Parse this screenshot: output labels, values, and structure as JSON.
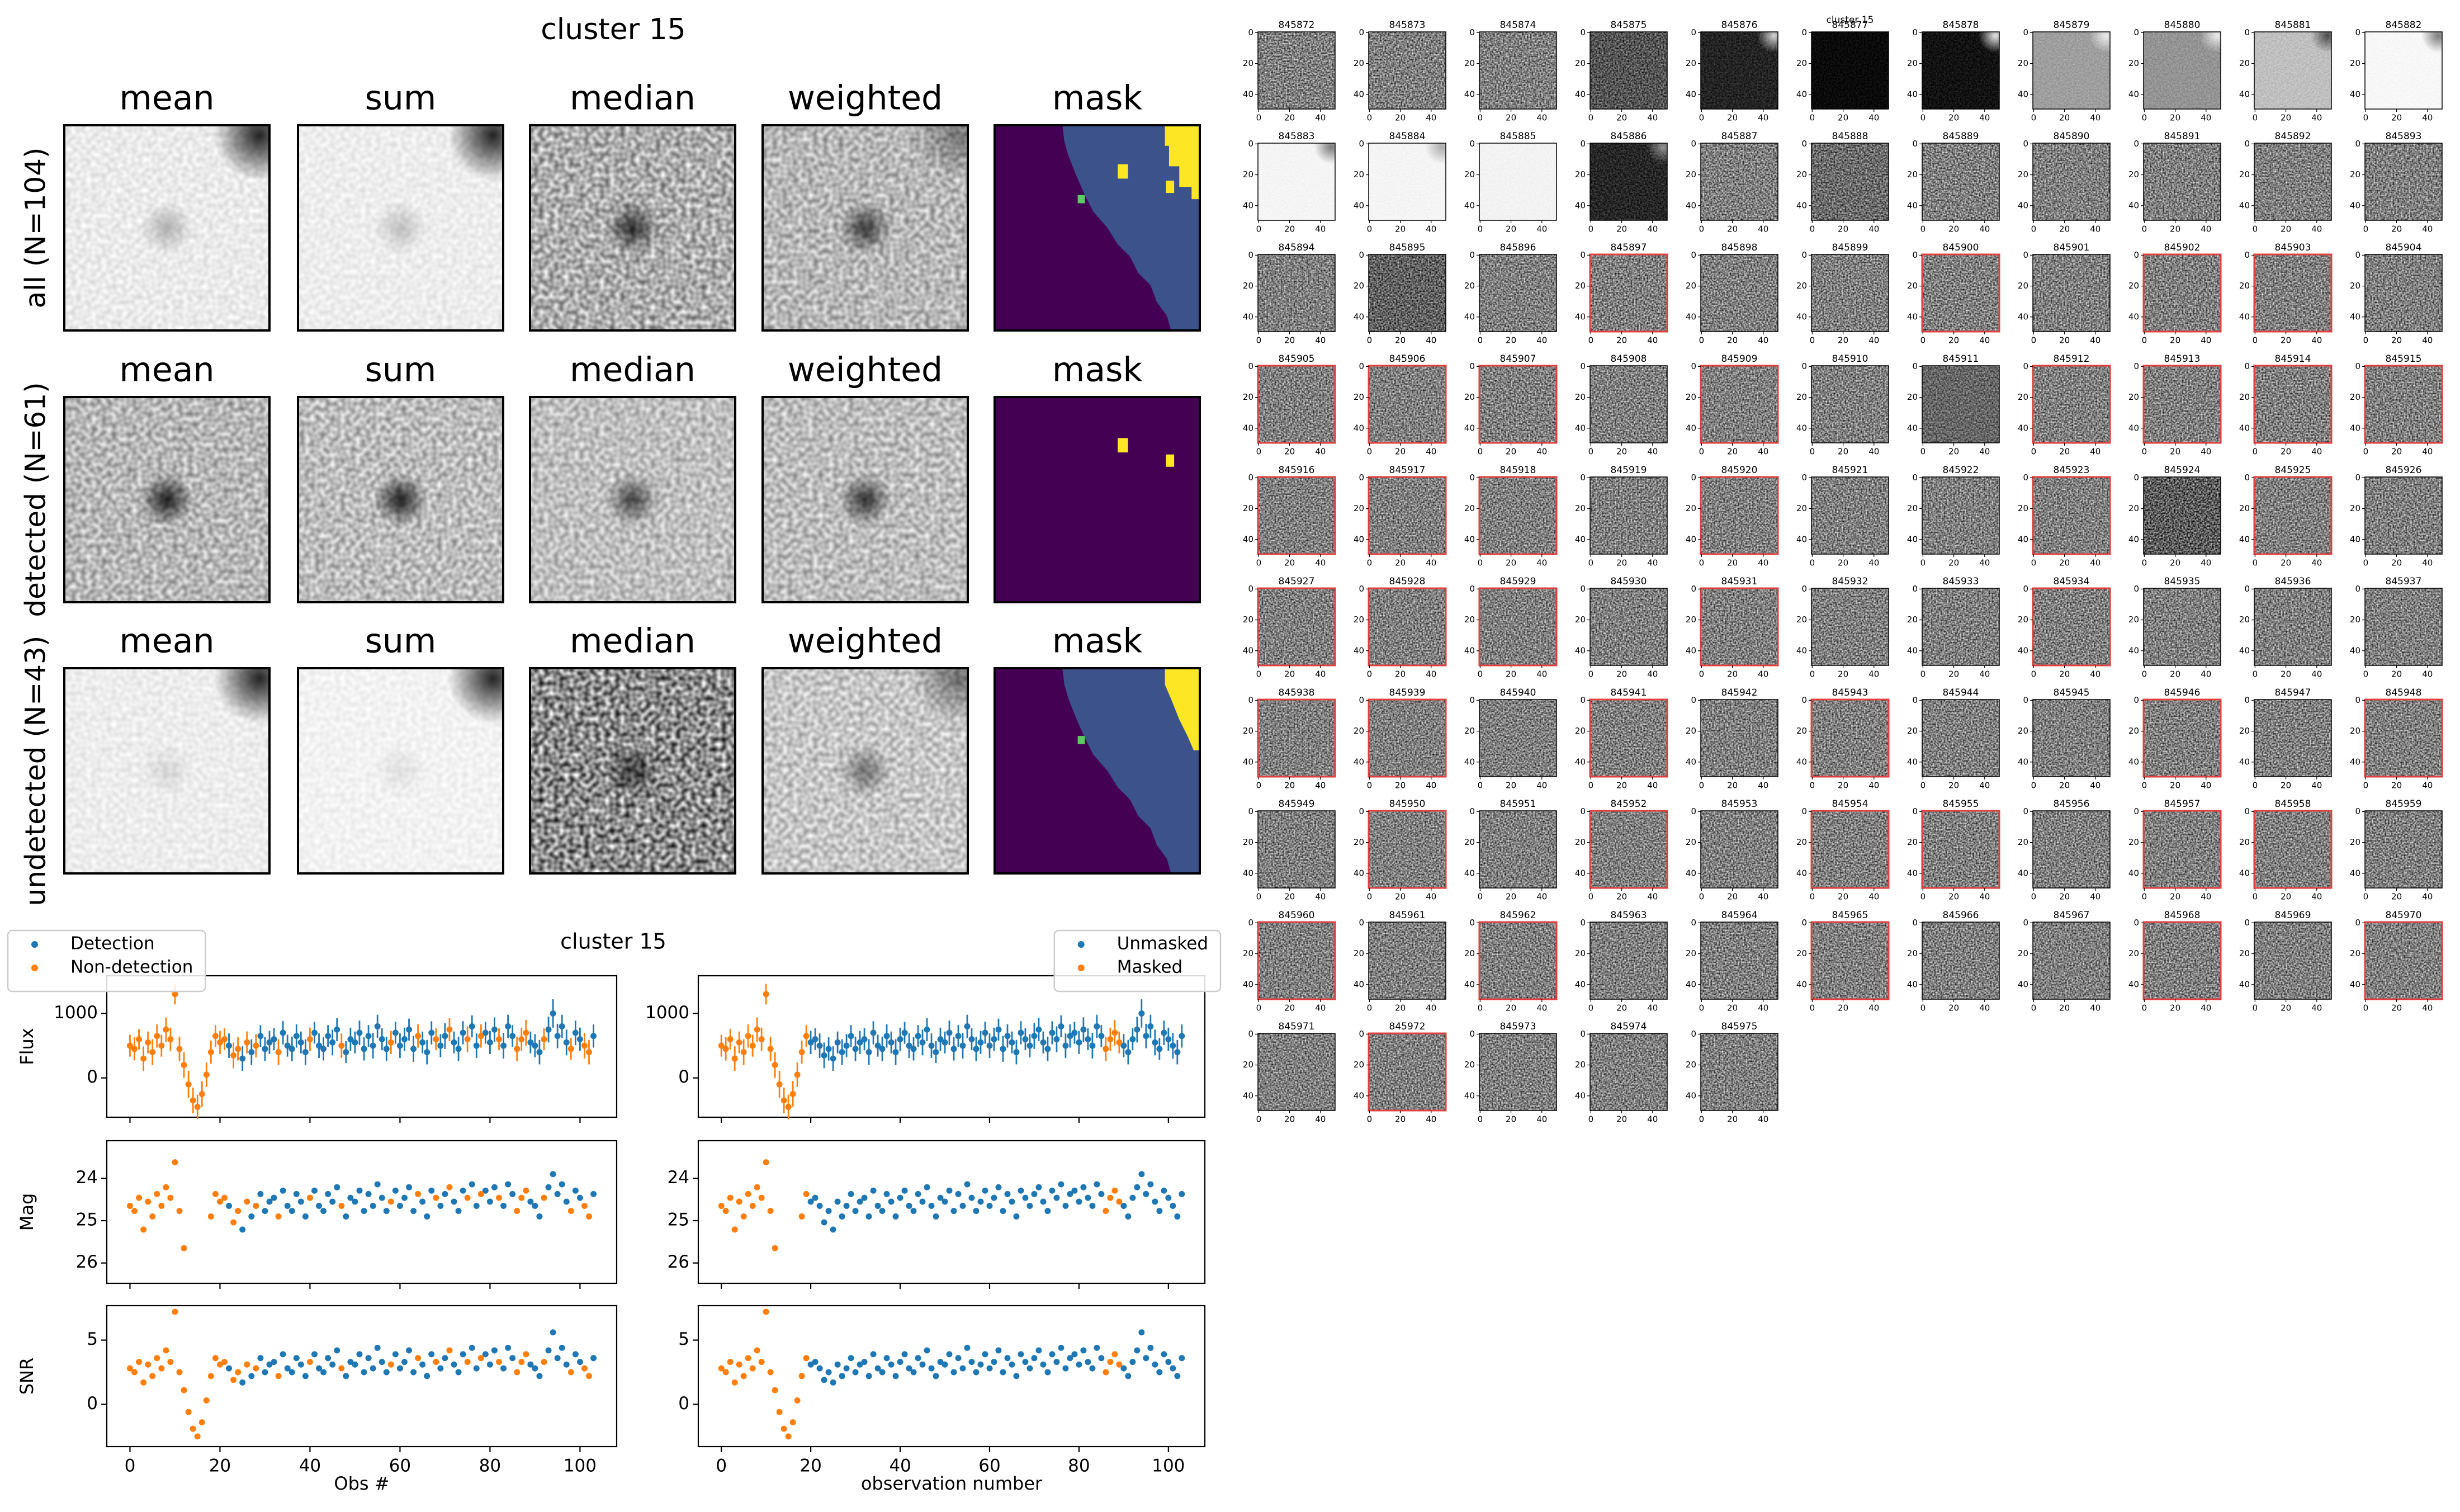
{
  "chart_data": [
    {
      "type": "image_grid",
      "title": "cluster 15",
      "columns": [
        "mean",
        "sum",
        "median",
        "weighted",
        "mask"
      ],
      "rows": [
        "all (N=104)",
        "detected (N=61)",
        "undetected (N=43)"
      ]
    },
    {
      "type": "lightcurve",
      "title": "cluster 15",
      "xlim": [
        -5.15,
        108.15
      ],
      "xticks": [
        0,
        20,
        40,
        60,
        80,
        100
      ],
      "flux": {
        "ylabel": "Flux",
        "ylim": [
          -610,
          1585
        ],
        "yticks": [
          0,
          1000
        ],
        "values": [
          500,
          450,
          600,
          300,
          550,
          400,
          650,
          500,
          750,
          600,
          1300,
          450,
          200,
          -100,
          -350,
          -450,
          -250,
          50,
          400,
          650,
          550,
          600,
          500,
          350,
          450,
          300,
          550,
          400,
          500,
          650,
          450,
          550,
          600,
          400,
          700,
          500,
          450,
          650,
          550,
          400,
          600,
          700,
          500,
          450,
          650,
          550,
          750,
          500,
          400,
          600,
          550,
          700,
          450,
          650,
          500,
          800,
          600,
          450,
          550,
          700,
          500,
          600,
          750,
          450,
          650,
          550,
          400,
          700,
          600,
          500,
          650,
          750,
          550,
          450,
          700,
          600,
          800,
          500,
          650,
          700,
          550,
          750,
          600,
          500,
          800,
          650,
          450,
          600,
          700,
          550,
          500,
          400,
          600,
          750,
          1000,
          650,
          800,
          550,
          450,
          700,
          600,
          500,
          400,
          650
        ],
        "errors": [
          170,
          180,
          160,
          190,
          170,
          200,
          180,
          170,
          190,
          180,
          160,
          190,
          200,
          210,
          200,
          190,
          200,
          190,
          180,
          170,
          180,
          170,
          190,
          200,
          180,
          190,
          170,
          200,
          180,
          170,
          190,
          180,
          170,
          200,
          180,
          170,
          190,
          180,
          170,
          200,
          180,
          170,
          190,
          180,
          170,
          200,
          180,
          190,
          170,
          180,
          170,
          190,
          180,
          170,
          200,
          180,
          170,
          190,
          180,
          170,
          190,
          180,
          170,
          200,
          180,
          170,
          190,
          180,
          170,
          180,
          200,
          180,
          170,
          190,
          180,
          200,
          170,
          190,
          180,
          170,
          180,
          190,
          170,
          200,
          180,
          170,
          190,
          180,
          200,
          170,
          180,
          190,
          170,
          200,
          220,
          190,
          180,
          200,
          170,
          190,
          180,
          200,
          190,
          180
        ]
      },
      "mag": {
        "ylabel": "Mag",
        "ylim": [
          26.48,
          23.11
        ],
        "yticks": [
          24,
          25,
          26
        ],
        "values": [
          24.65,
          24.77,
          24.46,
          25.21,
          24.55,
          24.9,
          24.37,
          24.65,
          24.21,
          24.46,
          23.62,
          24.77,
          25.65,
          null,
          null,
          null,
          null,
          null,
          24.9,
          24.37,
          24.55,
          24.46,
          24.65,
          25.04,
          24.77,
          25.21,
          24.55,
          24.9,
          24.65,
          24.37,
          24.77,
          24.55,
          24.46,
          24.9,
          24.29,
          24.65,
          24.77,
          24.37,
          24.55,
          24.9,
          24.46,
          24.29,
          24.65,
          24.77,
          24.37,
          24.55,
          24.21,
          24.65,
          24.9,
          24.46,
          24.55,
          24.29,
          24.77,
          24.37,
          24.65,
          24.14,
          24.46,
          24.77,
          24.55,
          24.29,
          24.65,
          24.46,
          24.21,
          24.77,
          24.37,
          24.55,
          24.9,
          24.29,
          24.46,
          24.65,
          24.37,
          24.21,
          24.55,
          24.77,
          24.29,
          24.46,
          24.14,
          24.65,
          24.37,
          24.29,
          24.55,
          24.21,
          24.46,
          24.65,
          24.14,
          24.37,
          24.77,
          24.46,
          24.29,
          24.55,
          24.65,
          24.9,
          24.46,
          24.21,
          23.9,
          24.37,
          24.14,
          24.55,
          24.77,
          24.29,
          24.46,
          24.65,
          24.9,
          24.37
        ]
      },
      "snr": {
        "ylabel": "SNR",
        "ylim": [
          -3.29,
          7.68
        ],
        "yticks": [
          0,
          5
        ],
        "values": [
          2.8,
          2.5,
          3.3,
          1.7,
          3.1,
          2.2,
          3.6,
          2.8,
          4.2,
          3.3,
          7.2,
          2.5,
          1.1,
          -0.6,
          -1.9,
          -2.5,
          -1.4,
          0.3,
          2.2,
          3.6,
          3.1,
          3.3,
          2.8,
          1.9,
          2.5,
          1.7,
          3.1,
          2.2,
          2.8,
          3.6,
          2.5,
          3.1,
          3.3,
          2.2,
          3.9,
          2.8,
          2.5,
          3.6,
          3.1,
          2.2,
          3.3,
          3.9,
          2.8,
          2.5,
          3.6,
          3.1,
          4.2,
          2.8,
          2.2,
          3.3,
          3.1,
          3.9,
          2.5,
          3.6,
          2.8,
          4.4,
          3.3,
          2.5,
          3.1,
          3.9,
          2.8,
          3.3,
          4.2,
          2.5,
          3.6,
          3.1,
          2.2,
          3.9,
          3.3,
          2.8,
          3.6,
          4.2,
          3.1,
          2.5,
          3.9,
          3.3,
          4.4,
          2.8,
          3.6,
          3.9,
          3.1,
          4.2,
          3.3,
          2.8,
          4.4,
          3.6,
          2.5,
          3.3,
          3.9,
          3.1,
          2.8,
          2.2,
          3.3,
          4.2,
          5.6,
          3.6,
          4.4,
          3.1,
          2.5,
          3.9,
          3.3,
          2.8,
          2.2,
          3.6
        ]
      },
      "columns": [
        {
          "xlabel": "Obs #",
          "legend": "upper left",
          "series": [
            {
              "name": "Detection",
              "color": "#1f77b4",
              "x": [
                22,
                25,
                27,
                29,
                30,
                31,
                32,
                34,
                35,
                36,
                37,
                38,
                39,
                41,
                42,
                43,
                44,
                45,
                46,
                48,
                49,
                50,
                51,
                52,
                53,
                54,
                55,
                56,
                57,
                59,
                60,
                61,
                62,
                63,
                65,
                66,
                67,
                69,
                70,
                72,
                73,
                74,
                76,
                77,
                79,
                80,
                81,
                83,
                84,
                85,
                89,
                90,
                91,
                93,
                94,
                95,
                96,
                97,
                99,
                100,
                103
              ]
            },
            {
              "name": "Non-detection",
              "color": "#ff7f0e",
              "x": [
                0,
                1,
                2,
                3,
                4,
                5,
                6,
                7,
                8,
                9,
                10,
                11,
                12,
                13,
                14,
                15,
                16,
                17,
                18,
                19,
                20,
                21,
                23,
                24,
                26,
                28,
                33,
                40,
                47,
                58,
                64,
                68,
                71,
                75,
                78,
                82,
                86,
                87,
                88,
                92,
                98,
                101,
                102
              ]
            }
          ]
        },
        {
          "xlabel": "observation number",
          "legend": "upper right",
          "series": [
            {
              "name": "Unmasked",
              "color": "#1f77b4",
              "x": [
                20,
                21,
                22,
                23,
                24,
                25,
                26,
                27,
                28,
                29,
                30,
                31,
                32,
                33,
                34,
                35,
                36,
                37,
                38,
                39,
                40,
                41,
                42,
                43,
                44,
                45,
                46,
                47,
                48,
                49,
                50,
                51,
                52,
                53,
                54,
                55,
                56,
                57,
                58,
                59,
                60,
                61,
                62,
                63,
                64,
                65,
                66,
                67,
                68,
                69,
                70,
                71,
                72,
                73,
                74,
                75,
                76,
                77,
                78,
                79,
                80,
                81,
                82,
                83,
                84,
                85,
                90,
                91,
                92,
                93,
                94,
                95,
                96,
                97,
                98,
                99,
                100,
                101,
                102,
                103
              ]
            },
            {
              "name": "Masked",
              "color": "#ff7f0e",
              "x": [
                0,
                1,
                2,
                3,
                4,
                5,
                6,
                7,
                8,
                9,
                10,
                11,
                12,
                13,
                14,
                15,
                16,
                17,
                18,
                19,
                86,
                87,
                88,
                89
              ]
            }
          ]
        }
      ]
    },
    {
      "type": "thumbnail_grid",
      "title": "cluster 15",
      "ids": [
        845872,
        845873,
        845874,
        845875,
        845876,
        845877,
        845878,
        845879,
        845880,
        845881,
        845882,
        845883,
        845884,
        845885,
        845886,
        845887,
        845888,
        845889,
        845890,
        845891,
        845892,
        845893,
        845894,
        845895,
        845896,
        845897,
        845898,
        845899,
        845900,
        845901,
        845902,
        845903,
        845904,
        845905,
        845906,
        845907,
        845908,
        845909,
        845910,
        845911,
        845912,
        845913,
        845914,
        845915,
        845916,
        845917,
        845918,
        845919,
        845920,
        845921,
        845922,
        845923,
        845924,
        845925,
        845926,
        845927,
        845928,
        845929,
        845930,
        845931,
        845932,
        845933,
        845934,
        845935,
        845936,
        845937,
        845938,
        845939,
        845940,
        845941,
        845942,
        845943,
        845944,
        845945,
        845946,
        845947,
        845948,
        845949,
        845950,
        845951,
        845952,
        845953,
        845954,
        845955,
        845956,
        845957,
        845958,
        845959,
        845960,
        845961,
        845962,
        845963,
        845964,
        845965,
        845966,
        845967,
        845968,
        845969,
        845970,
        845971,
        845972,
        845973,
        845974,
        845975
      ],
      "highlighted": [
        845897,
        845900,
        845902,
        845903,
        845905,
        845906,
        845907,
        845909,
        845912,
        845913,
        845914,
        845915,
        845916,
        845917,
        845918,
        845920,
        845923,
        845925,
        845927,
        845928,
        845929,
        845931,
        845934,
        845938,
        845939,
        845941,
        845943,
        845946,
        845948,
        845950,
        845952,
        845954,
        845955,
        845957,
        845958,
        845960,
        845962,
        845965,
        845968,
        845970,
        845972
      ],
      "highlight_color": "#e0413f",
      "xlim": [
        -0.5,
        49.5
      ],
      "ylim": [
        49.5,
        -0.5
      ],
      "xticks": [
        0,
        20,
        40
      ],
      "yticks": [
        0,
        20,
        40
      ]
    }
  ]
}
